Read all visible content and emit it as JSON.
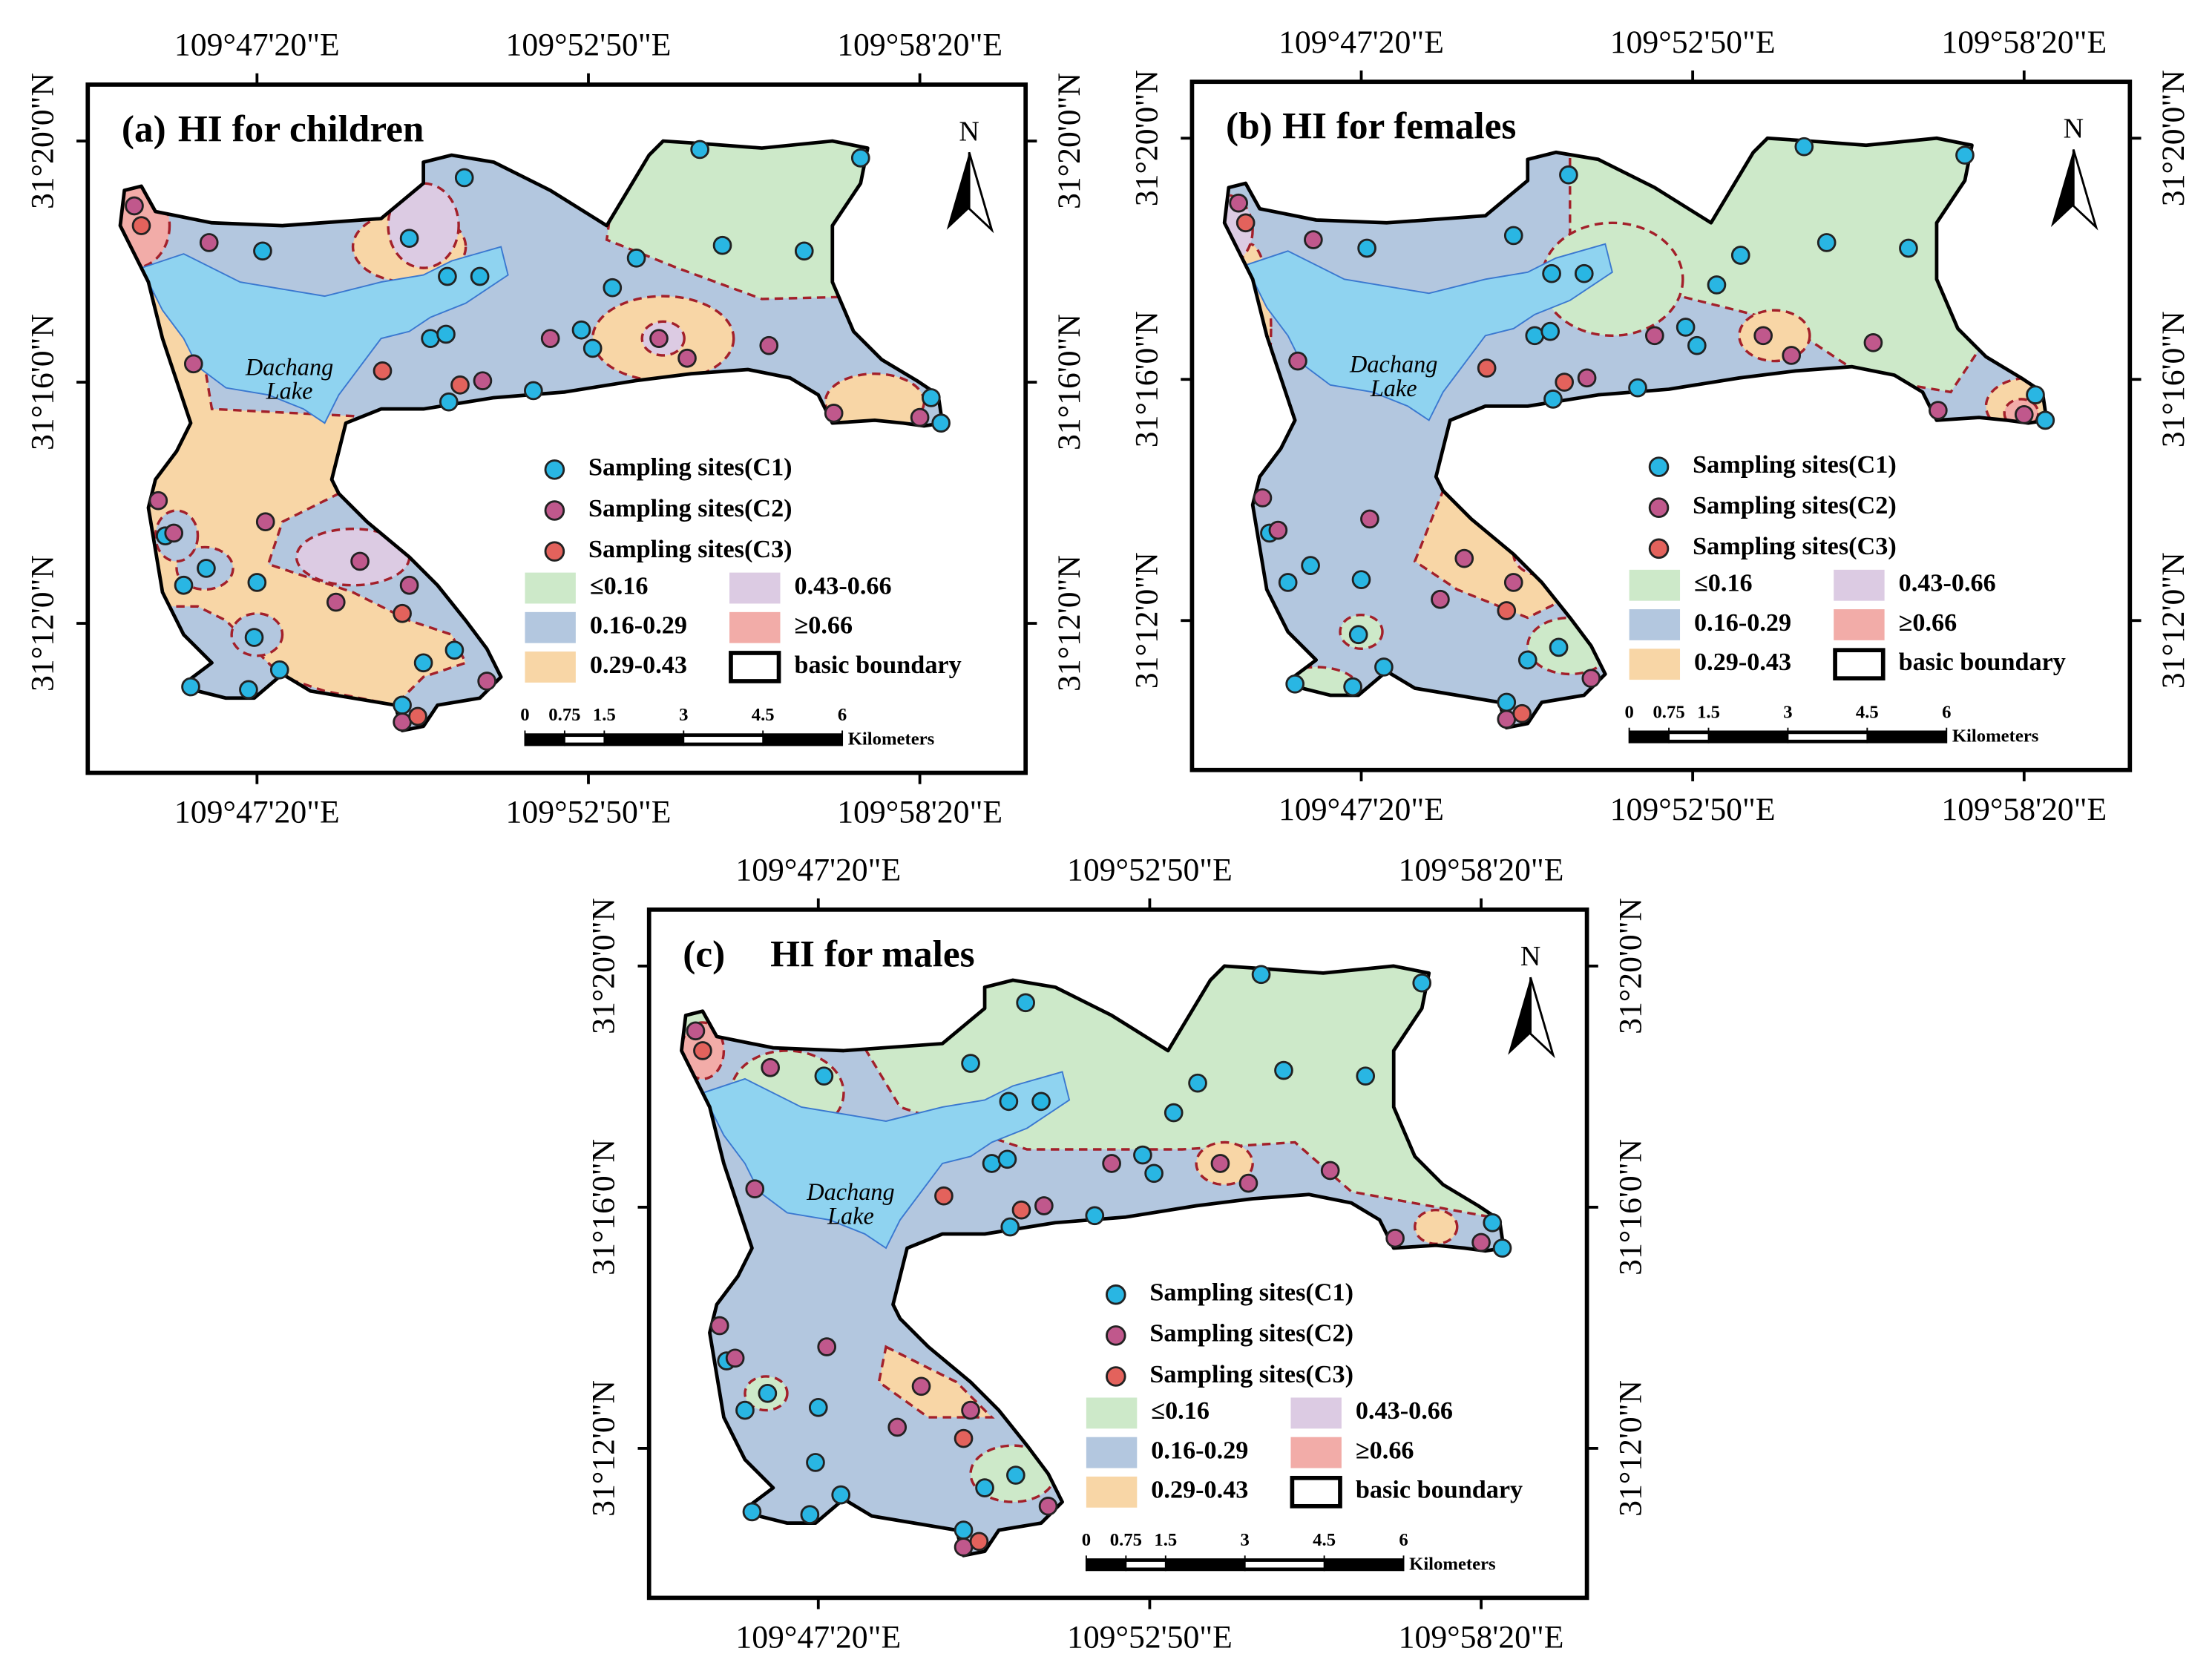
{
  "panels": [
    {
      "label": "(a)",
      "title": "HI for children"
    },
    {
      "label": "(b)",
      "title": "HI for females"
    },
    {
      "label": "(c)",
      "title": "HI for males"
    }
  ],
  "lon_ticks": [
    "109°47'20\"E",
    "109°52'50\"E",
    "109°58'20\"E"
  ],
  "lat_ticks": [
    "31°20'0\"N",
    "31°16'0\"N",
    "31°12'0\"N"
  ],
  "north": "N",
  "lake": [
    "Dachang",
    "Lake"
  ],
  "sites": [
    {
      "name": "Sampling sites(C1)",
      "color": "#29b6e3"
    },
    {
      "name": "Sampling sites(C2)",
      "color": "#c0588c"
    },
    {
      "name": "Sampling sites(C3)",
      "color": "#e3625c"
    }
  ],
  "classes": [
    {
      "name": "≤0.16",
      "color": "#cde9c9"
    },
    {
      "name": "0.16-0.29",
      "color": "#b3c7df"
    },
    {
      "name": "0.29-0.43",
      "color": "#f8d6a6"
    },
    {
      "name": "0.43-0.66",
      "color": "#dccbe3"
    },
    {
      "name": "≥0.66",
      "color": "#f2aca8"
    }
  ],
  "boundary": "basic boundary",
  "scale": {
    "values": [
      0,
      0.75,
      1.5,
      3,
      4.5,
      6
    ],
    "units": "Kilometers"
  }
}
